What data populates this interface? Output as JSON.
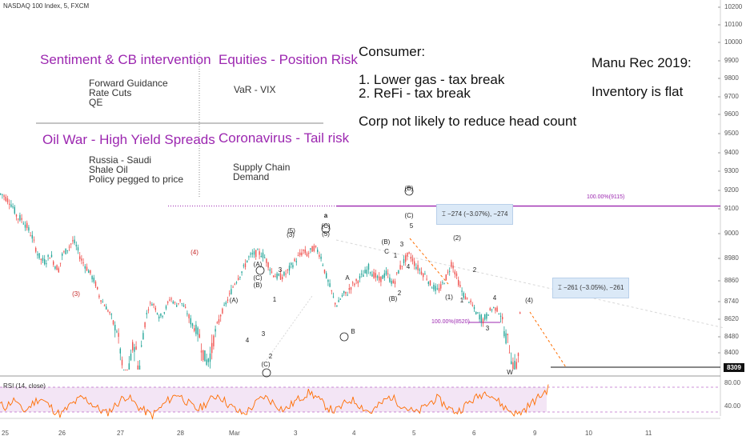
{
  "chart_title": "NASDAQ 100 Index, 5, FXCM",
  "chart_data": {
    "type": "line",
    "title": "NASDAQ 100 Index, 5, FXCM",
    "y_ticks": [
      "10200",
      "10100",
      "10000",
      "9900",
      "9800",
      "9700",
      "9600",
      "9500",
      "9400",
      "9300",
      "9200",
      "9100",
      "9000",
      "8980",
      "8860",
      "8740",
      "8620",
      "8480",
      "8400"
    ],
    "x_ticks": [
      "25",
      "26",
      "27",
      "28",
      "Mar",
      "3",
      "4",
      "5",
      "6",
      "9",
      "10",
      "11"
    ],
    "last_price": "8309",
    "price_path": [
      [
        0,
        9180
      ],
      [
        0.06,
        9160
      ],
      [
        0.12,
        9140
      ],
      [
        0.18,
        9110
      ],
      [
        0.25,
        9060
      ],
      [
        0.33,
        9050
      ],
      [
        0.42,
        9010
      ],
      [
        0.5,
        8960
      ],
      [
        0.58,
        8870
      ],
      [
        0.65,
        8830
      ],
      [
        0.72,
        8820
      ],
      [
        0.8,
        8860
      ],
      [
        0.88,
        8800
      ],
      [
        0.94,
        8780
      ],
      [
        1.0,
        8860
      ],
      [
        1.06,
        8880
      ],
      [
        1.12,
        8910
      ],
      [
        1.18,
        8940
      ],
      [
        1.24,
        8900
      ],
      [
        1.3,
        8840
      ],
      [
        1.38,
        8800
      ],
      [
        1.46,
        8760
      ],
      [
        1.55,
        8700
      ],
      [
        1.62,
        8620
      ],
      [
        1.7,
        8560
      ],
      [
        1.78,
        8500
      ],
      [
        1.85,
        8440
      ],
      [
        1.9,
        8420
      ],
      [
        1.96,
        8360
      ],
      [
        2.0,
        8300
      ],
      [
        2.05,
        8260
      ],
      [
        2.12,
        8320
      ],
      [
        2.18,
        8380
      ],
      [
        2.22,
        8360
      ],
      [
        2.27,
        8300
      ],
      [
        2.32,
        8380
      ],
      [
        2.38,
        8460
      ],
      [
        2.44,
        8560
      ],
      [
        2.5,
        8580
      ],
      [
        2.56,
        8520
      ],
      [
        2.62,
        8470
      ],
      [
        2.68,
        8500
      ],
      [
        2.74,
        8560
      ],
      [
        2.79,
        8620
      ],
      [
        2.85,
        8580
      ],
      [
        2.9,
        8560
      ],
      [
        2.95,
        8600
      ],
      [
        3.0,
        8560
      ],
      [
        3.05,
        8520
      ],
      [
        3.1,
        8470
      ],
      [
        3.16,
        8440
      ],
      [
        3.22,
        8420
      ],
      [
        3.27,
        8400
      ],
      [
        3.32,
        8360
      ],
      [
        3.38,
        8330
      ],
      [
        3.43,
        8340
      ],
      [
        3.48,
        8360
      ],
      [
        3.52,
        8400
      ],
      [
        3.58,
        8440
      ],
      [
        3.64,
        8500
      ],
      [
        3.7,
        8560
      ],
      [
        3.78,
        8640
      ],
      [
        3.85,
        8700
      ],
      [
        3.92,
        8740
      ],
      [
        4.0,
        8780
      ],
      [
        4.08,
        8840
      ],
      [
        4.16,
        8860
      ],
      [
        4.24,
        8870
      ],
      [
        4.32,
        8860
      ],
      [
        4.4,
        8820
      ],
      [
        4.48,
        8760
      ],
      [
        4.56,
        8740
      ],
      [
        4.64,
        8740
      ],
      [
        4.72,
        8760
      ],
      [
        4.8,
        8800
      ],
      [
        4.9,
        8840
      ],
      [
        5.0,
        8880
      ],
      [
        5.06,
        8860
      ],
      [
        5.12,
        8880
      ],
      [
        5.18,
        8900
      ],
      [
        5.24,
        8880
      ],
      [
        5.3,
        8840
      ],
      [
        5.36,
        8760
      ],
      [
        5.42,
        8700
      ],
      [
        5.48,
        8640
      ],
      [
        5.52,
        8580
      ],
      [
        5.56,
        8560
      ],
      [
        5.6,
        8600
      ],
      [
        5.66,
        8640
      ],
      [
        5.72,
        8640
      ],
      [
        5.78,
        8680
      ],
      [
        5.84,
        8700
      ],
      [
        5.9,
        8720
      ],
      [
        5.96,
        8740
      ],
      [
        6.02,
        8760
      ],
      [
        6.08,
        8790
      ],
      [
        6.14,
        8760
      ],
      [
        6.2,
        8740
      ],
      [
        6.26,
        8720
      ],
      [
        6.32,
        8740
      ],
      [
        6.38,
        8760
      ],
      [
        6.44,
        8720
      ],
      [
        6.5,
        8700
      ],
      [
        6.56,
        8760
      ],
      [
        6.62,
        8800
      ],
      [
        6.68,
        8830
      ],
      [
        6.74,
        8860
      ],
      [
        6.8,
        8840
      ],
      [
        6.86,
        8800
      ],
      [
        6.92,
        8780
      ],
      [
        6.98,
        8760
      ],
      [
        7.04,
        8740
      ],
      [
        7.1,
        8700
      ],
      [
        7.16,
        8680
      ],
      [
        7.22,
        8660
      ],
      [
        7.28,
        8680
      ],
      [
        7.34,
        8720
      ],
      [
        7.4,
        8760
      ],
      [
        7.46,
        8820
      ],
      [
        7.5,
        8780
      ],
      [
        7.56,
        8720
      ],
      [
        7.62,
        8660
      ],
      [
        7.68,
        8620
      ],
      [
        7.74,
        8600
      ],
      [
        7.8,
        8560
      ],
      [
        7.86,
        8500
      ],
      [
        7.92,
        8480
      ],
      [
        7.98,
        8460
      ],
      [
        8.04,
        8480
      ],
      [
        8.1,
        8520
      ],
      [
        8.16,
        8540
      ],
      [
        8.22,
        8520
      ],
      [
        8.28,
        8480
      ],
      [
        8.34,
        8400
      ],
      [
        8.4,
        8380
      ],
      [
        8.46,
        8330
      ],
      [
        8.52,
        8309
      ],
      [
        8.56,
        8340
      ],
      [
        8.58,
        8420
      ],
      [
        8.6,
        8540
      ],
      [
        8.62,
        8309
      ]
    ],
    "ylim": [
      8309,
      10200
    ],
    "levels": [
      {
        "label": "100.00%(9115)",
        "value": 9115
      },
      {
        "label": "100.00%(8520)",
        "value": 8520
      }
    ],
    "rsi": {
      "label": "RSI (14, close)",
      "upper": "80.00",
      "lower": "40.00",
      "values": [
        52,
        48,
        55,
        60,
        45,
        42,
        50,
        58,
        62,
        55,
        48,
        40,
        36,
        44,
        52,
        57,
        63,
        60,
        54,
        47,
        42,
        38,
        45,
        53,
        61,
        66,
        58,
        50,
        44,
        39,
        35,
        42,
        50,
        58,
        64,
        70,
        62,
        55,
        48,
        44,
        50,
        57,
        63,
        68,
        60,
        52,
        46,
        40,
        37,
        43,
        51,
        59,
        65,
        60,
        54,
        48,
        43,
        49,
        56,
        62,
        67,
        72,
        66,
        58,
        51,
        45,
        41,
        47,
        54,
        60,
        57,
        50,
        44,
        39,
        46,
        53,
        60,
        65,
        58,
        52,
        47,
        42,
        38,
        44,
        51,
        57,
        62,
        56,
        49,
        43,
        40,
        46,
        53,
        59,
        64,
        69,
        74,
        66,
        58,
        50,
        44,
        40,
        36,
        42,
        49,
        56,
        63,
        70,
        78
      ]
    }
  },
  "notes": {
    "sentiment_title": "Sentiment & CB intervention",
    "sentiment_items": [
      "Forward Guidance",
      "Rate Cuts",
      "QE"
    ],
    "equities_title": "Equities - Position Risk",
    "equities_items": [
      "VaR - VIX"
    ],
    "oil_title": "Oil War - High Yield Spreads",
    "oil_items": [
      "Russia - Saudi",
      "Shale Oil",
      "Policy pegged to price"
    ],
    "corona_title": "Coronavirus - Tail risk",
    "corona_items": [
      "Supply Chain",
      "Demand"
    ],
    "consumer_title": "Consumer:",
    "consumer_items": [
      "1. Lower gas - tax break",
      "2. ReFi - tax break"
    ],
    "consumer_footer": "Corp not likely to reduce head count",
    "manu_title": "Manu Rec 2019:",
    "manu_line": "Inventory is flat"
  },
  "measurements": [
    {
      "label": "−274 (−3.07%), −274"
    },
    {
      "label": "−261 (−3.05%), −261"
    }
  ],
  "wave_labels": [
    "(3)",
    "(4)",
    "(4)",
    "(A)",
    "(A)",
    "(C)",
    "(B)",
    "(B)",
    "(5)",
    "(5)",
    "(3)",
    "A",
    "B",
    "C",
    "a",
    "(C)",
    "(B)",
    "(C)",
    "5",
    "5",
    "4",
    "3",
    "1",
    "2",
    "(2)",
    "(1)",
    "3",
    "4",
    "1",
    "2",
    "W",
    "(2)",
    "(C)",
    "2",
    "5",
    "(4)",
    "5",
    "1",
    "2",
    "3",
    "4",
    "3",
    "5",
    "B",
    "(A)",
    "C",
    "(B)"
  ],
  "colors": {
    "up": "#26a69a",
    "down": "#ef5350",
    "purple": "#9c27b0",
    "rsi_line": "#ff6d00",
    "rsi_band": "#f3e5f5",
    "measure_bg": "#dbe9f7"
  }
}
